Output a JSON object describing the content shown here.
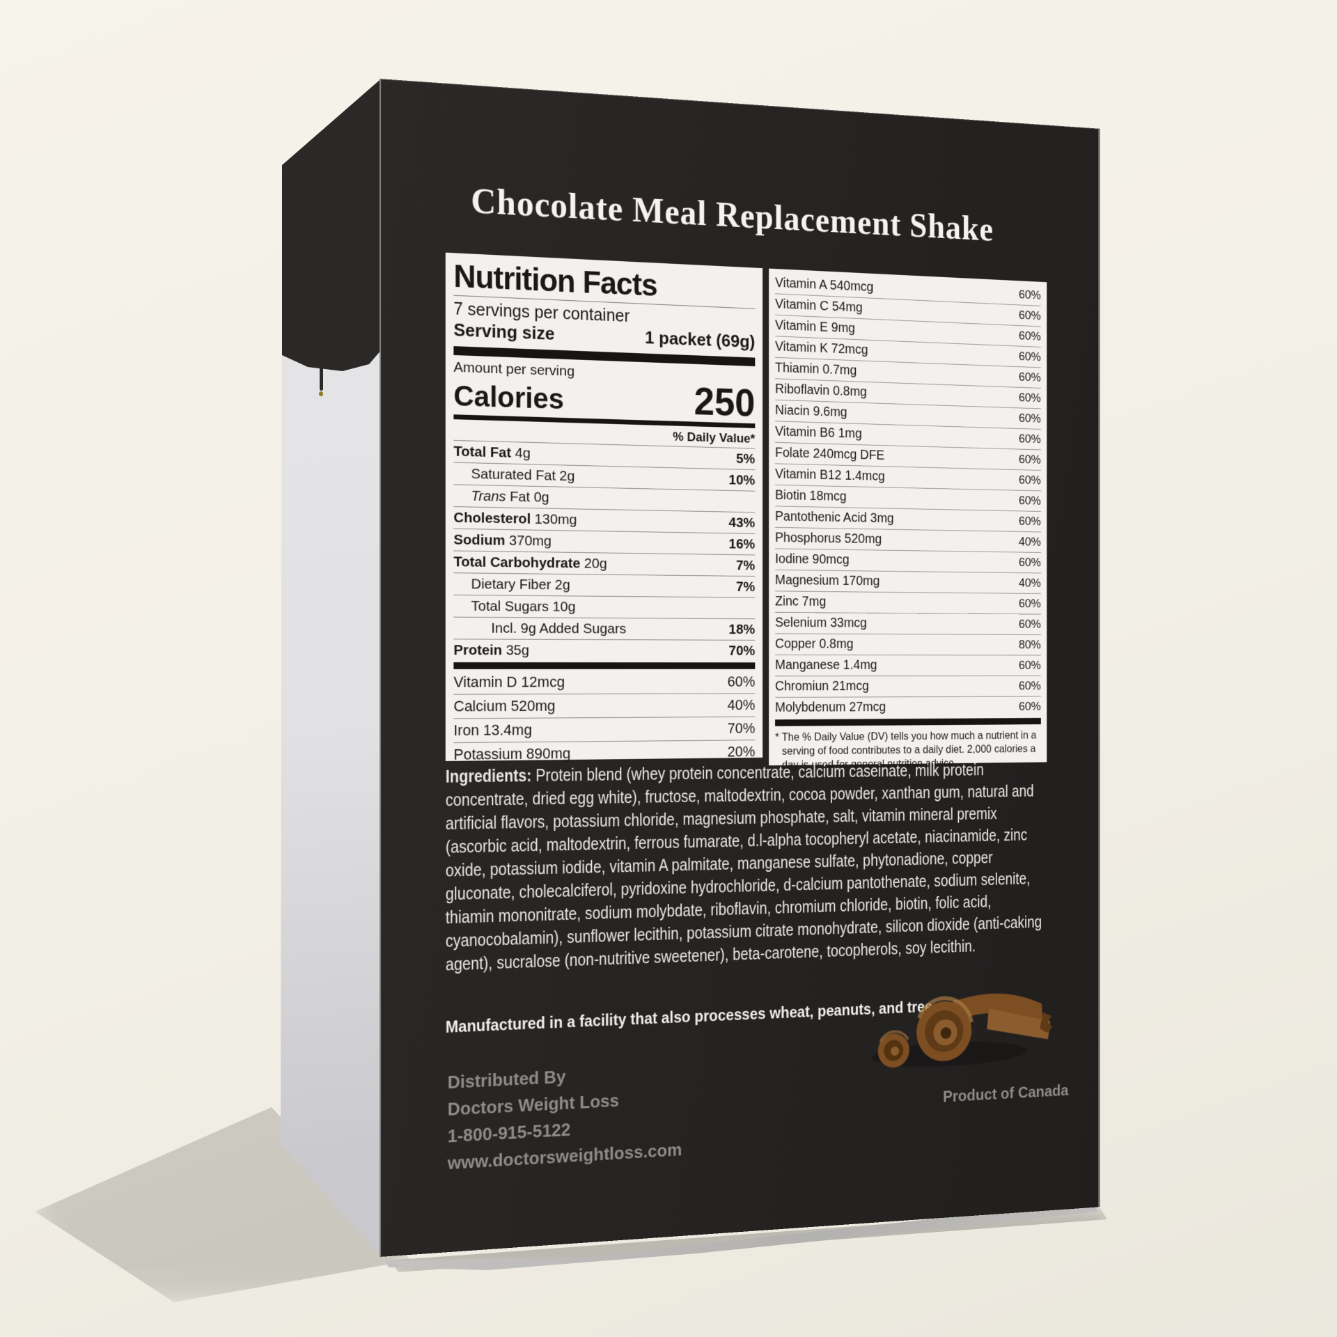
{
  "product": {
    "title": "Chocolate Meal Replacement Shake"
  },
  "nutrition_facts": {
    "title": "Nutrition Facts",
    "servings_per_container": "7 servings per container",
    "serving_size_label": "Serving size",
    "serving_size_value": "1 packet (69g)",
    "amount_per_serving": "Amount per serving",
    "calories_label": "Calories",
    "calories_value": "250",
    "daily_value_header": "% Daily Value*",
    "main_rows": [
      {
        "name": "Total Fat",
        "amount": "4g",
        "dv": "5%",
        "bold": true,
        "indent": 0
      },
      {
        "name": "Saturated Fat",
        "amount": "2g",
        "dv": "10%",
        "indent": 1
      },
      {
        "name": "Fat",
        "italic_prefix": "Trans",
        "amount": "0g",
        "dv": "",
        "indent": 1
      },
      {
        "name": "Cholesterol",
        "amount": "130mg",
        "dv": "43%",
        "bold": true,
        "indent": 0
      },
      {
        "name": "Sodium",
        "amount": "370mg",
        "dv": "16%",
        "bold": true,
        "indent": 0
      },
      {
        "name": "Total Carbohydrate",
        "amount": "20g",
        "dv": "7%",
        "bold": true,
        "indent": 0
      },
      {
        "name": "Dietary Fiber",
        "amount": "2g",
        "dv": "7%",
        "indent": 1
      },
      {
        "name": "Total Sugars",
        "amount": "10g",
        "dv": "",
        "indent": 1
      },
      {
        "name": "Incl. 9g Added Sugars",
        "amount": "",
        "dv": "18%",
        "indent": 2
      },
      {
        "name": "Protein",
        "amount": "35g",
        "dv": "70%",
        "bold": true,
        "indent": 0
      }
    ],
    "mineral_rows": [
      {
        "name": "Vitamin D",
        "amount": "12mcg",
        "dv": "60%"
      },
      {
        "name": "Calcium",
        "amount": "520mg",
        "dv": "40%"
      },
      {
        "name": "Iron",
        "amount": "13.4mg",
        "dv": "70%"
      },
      {
        "name": "Potassium",
        "amount": "890mg",
        "dv": "20%"
      }
    ],
    "vitamin_rows": [
      {
        "name": "Vitamin A",
        "amount": "540mcg",
        "dv": "60%"
      },
      {
        "name": "Vitamin C",
        "amount": "54mg",
        "dv": "60%"
      },
      {
        "name": "Vitamin E",
        "amount": "9mg",
        "dv": "60%"
      },
      {
        "name": "Vitamin K",
        "amount": "72mcg",
        "dv": "60%"
      },
      {
        "name": "Thiamin",
        "amount": "0.7mg",
        "dv": "60%"
      },
      {
        "name": "Riboflavin",
        "amount": "0.8mg",
        "dv": "60%"
      },
      {
        "name": "Niacin",
        "amount": "9.6mg",
        "dv": "60%"
      },
      {
        "name": "Vitamin B6",
        "amount": "1mg",
        "dv": "60%"
      },
      {
        "name": "Folate",
        "amount": "240mcg DFE",
        "dv": "60%"
      },
      {
        "name": "Vitamin B12",
        "amount": "1.4mcg",
        "dv": "60%"
      },
      {
        "name": "Biotin",
        "amount": "18mcg",
        "dv": "60%"
      },
      {
        "name": "Pantothenic Acid",
        "amount": "3mg",
        "dv": "60%"
      },
      {
        "name": "Phosphorus",
        "amount": "520mg",
        "dv": "40%"
      },
      {
        "name": "Iodine",
        "amount": "90mcg",
        "dv": "60%"
      },
      {
        "name": "Magnesium",
        "amount": "170mg",
        "dv": "40%"
      },
      {
        "name": "Zinc",
        "amount": "7mg",
        "dv": "60%"
      },
      {
        "name": "Selenium",
        "amount": "33mcg",
        "dv": "60%"
      },
      {
        "name": "Copper",
        "amount": "0.8mg",
        "dv": "80%"
      },
      {
        "name": "Manganese",
        "amount": "1.4mg",
        "dv": "60%"
      },
      {
        "name": "Chromiun",
        "amount": "21mcg",
        "dv": "60%"
      },
      {
        "name": "Molybdenum",
        "amount": "27mcg",
        "dv": "60%"
      }
    ],
    "footnote": "* The % Daily Value (DV) tells you how much a nutrient in a serving of food contributes to a daily diet. 2,000 calories a day is used for general nutrition advice."
  },
  "ingredients": {
    "label": "Ingredients:",
    "text": "Protein blend (whey protein concentrate, calcium caseinate, milk protein concentrate, dried egg white), fructose, maltodextrin, cocoa powder, xanthan gum, natural and artificial flavors, potassium chloride, magnesium phosphate, salt, vitamin mineral premix (ascorbic acid, maltodextrin, ferrous fumarate, d.l-alpha tocopheryl acetate, niacinamide, zinc oxide, potassium iodide, vitamin A palmitate, manganese sulfate, phytonadione, copper gluconate, cholecalciferol, pyridoxine hydrochloride, d-calcium pantothenate, sodium selenite, thiamin mononitrate, sodium molybdate, riboflavin, chromium chloride, biotin, folic acid, cyanocobalamin), sunflower lecithin, potassium citrate monohydrate, silicon dioxide (anti-caking agent), sucralose (non-nutritive sweetener), beta-carotene, tocopherols, soy lecithin."
  },
  "allergen": "Manufactured in a facility that also processes wheat, peanuts, and tree nuts.",
  "footer": {
    "distributed_by": "Distributed By",
    "company": "Doctors Weight Loss",
    "phone": "1-800-915-5122",
    "website": "www.doctorsweightloss.com",
    "origin": "Product of Canada"
  },
  "colors": {
    "box_front": "#262422",
    "label_bg": "#f3f1ed",
    "label_text": "#191815",
    "muted_text": "#8d8c8a",
    "chocolate_dark": "#5f3a17",
    "chocolate_mid": "#7c4e22",
    "chocolate_light": "#9a6a33"
  }
}
